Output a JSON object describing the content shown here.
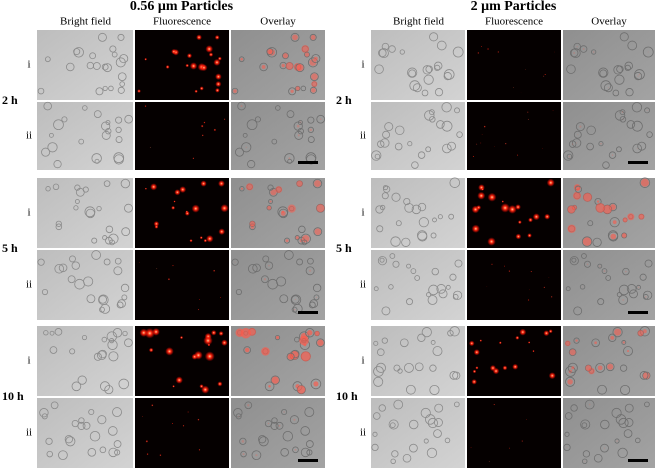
{
  "panels": [
    {
      "title": "0.56 μm Particles",
      "columns": [
        "Bright field",
        "Fluorescence",
        "Overlay"
      ],
      "groups": [
        {
          "time": "2 h",
          "rows": [
            "i",
            "ii"
          ]
        },
        {
          "time": "5 h",
          "rows": [
            "i",
            "ii"
          ]
        },
        {
          "time": "10 h",
          "rows": [
            "i",
            "ii"
          ]
        }
      ]
    },
    {
      "title": "2 μm Particles",
      "columns": [
        "Bright field",
        "Fluorescence",
        "Overlay"
      ],
      "groups": [
        {
          "time": "2 h",
          "rows": [
            "i",
            "ii"
          ]
        },
        {
          "time": "5 h",
          "rows": [
            "i",
            "ii"
          ]
        },
        {
          "time": "10 h",
          "rows": [
            "i",
            "ii"
          ]
        }
      ]
    }
  ]
}
